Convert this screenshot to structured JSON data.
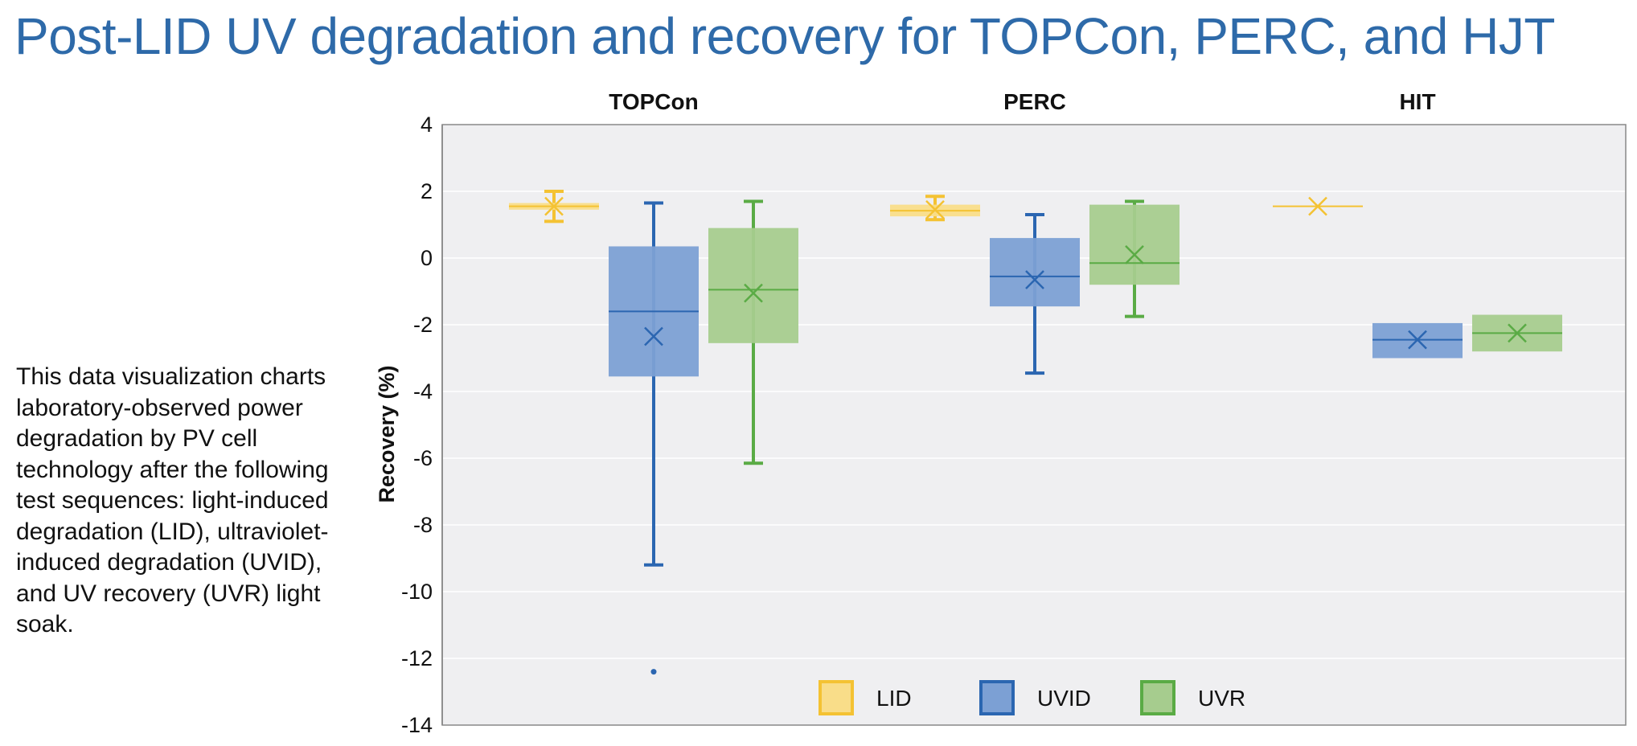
{
  "title": "Post-LID UV degradation and recovery for TOPCon, PERC, and HJT",
  "description": "This data visualization charts laboratory-observed power degradation by PV cell technology after the following test sequences: light-induced degradation (LID), ultraviolet-induced degradation (UVID), and UV recovery (UVR) light soak.",
  "colors": {
    "LID": "#f4c233",
    "UVID": "#2b66b1",
    "UVR": "#5aab45",
    "LID_fill": "#f9dd89",
    "UVID_fill": "#7ca0d4",
    "UVR_fill": "#a6cc8e",
    "plot_bg": "#efeff1",
    "title": "#2e6aa9"
  },
  "chart_data": {
    "type": "box",
    "ylabel": "Recovery (%)",
    "ylim": [
      -14,
      4
    ],
    "yticks": [
      4,
      2,
      0,
      -2,
      -4,
      -6,
      -8,
      -10,
      -12,
      -14
    ],
    "grid": true,
    "legend_position": "bottom-center",
    "groups": [
      "TOPCon",
      "PERC",
      "HIT"
    ],
    "series": [
      {
        "name": "LID",
        "boxes": [
          {
            "group": "TOPCon",
            "min": 1.1,
            "q1": 1.45,
            "median": 1.55,
            "q3": 1.65,
            "max": 2.0,
            "mean": 1.55,
            "outliers": []
          },
          {
            "group": "PERC",
            "min": 1.15,
            "q1": 1.25,
            "median": 1.42,
            "q3": 1.6,
            "max": 1.85,
            "mean": 1.45,
            "outliers": []
          },
          {
            "group": "HIT",
            "min": 1.55,
            "q1": 1.55,
            "median": 1.55,
            "q3": 1.55,
            "max": 1.55,
            "mean": 1.55,
            "outliers": []
          }
        ]
      },
      {
        "name": "UVID",
        "boxes": [
          {
            "group": "TOPCon",
            "min": -9.2,
            "q1": -3.55,
            "median": -1.6,
            "q3": 0.35,
            "max": 1.65,
            "mean": -2.35,
            "outliers": [
              -12.4
            ]
          },
          {
            "group": "PERC",
            "min": -3.45,
            "q1": -1.45,
            "median": -0.55,
            "q3": 0.6,
            "max": 1.3,
            "mean": -0.65,
            "outliers": []
          },
          {
            "group": "HIT",
            "min": -3.0,
            "q1": -3.0,
            "median": -2.45,
            "q3": -1.95,
            "max": -1.95,
            "mean": -2.45,
            "outliers": []
          }
        ]
      },
      {
        "name": "UVR",
        "boxes": [
          {
            "group": "TOPCon",
            "min": -6.15,
            "q1": -2.55,
            "median": -0.95,
            "q3": 0.9,
            "max": 1.7,
            "mean": -1.05,
            "outliers": []
          },
          {
            "group": "PERC",
            "min": -1.75,
            "q1": -0.8,
            "median": -0.15,
            "q3": 1.6,
            "max": 1.7,
            "mean": 0.1,
            "outliers": []
          },
          {
            "group": "HIT",
            "min": -2.8,
            "q1": -2.8,
            "median": -2.25,
            "q3": -1.7,
            "max": -1.7,
            "mean": -2.25,
            "outliers": []
          }
        ]
      }
    ]
  }
}
